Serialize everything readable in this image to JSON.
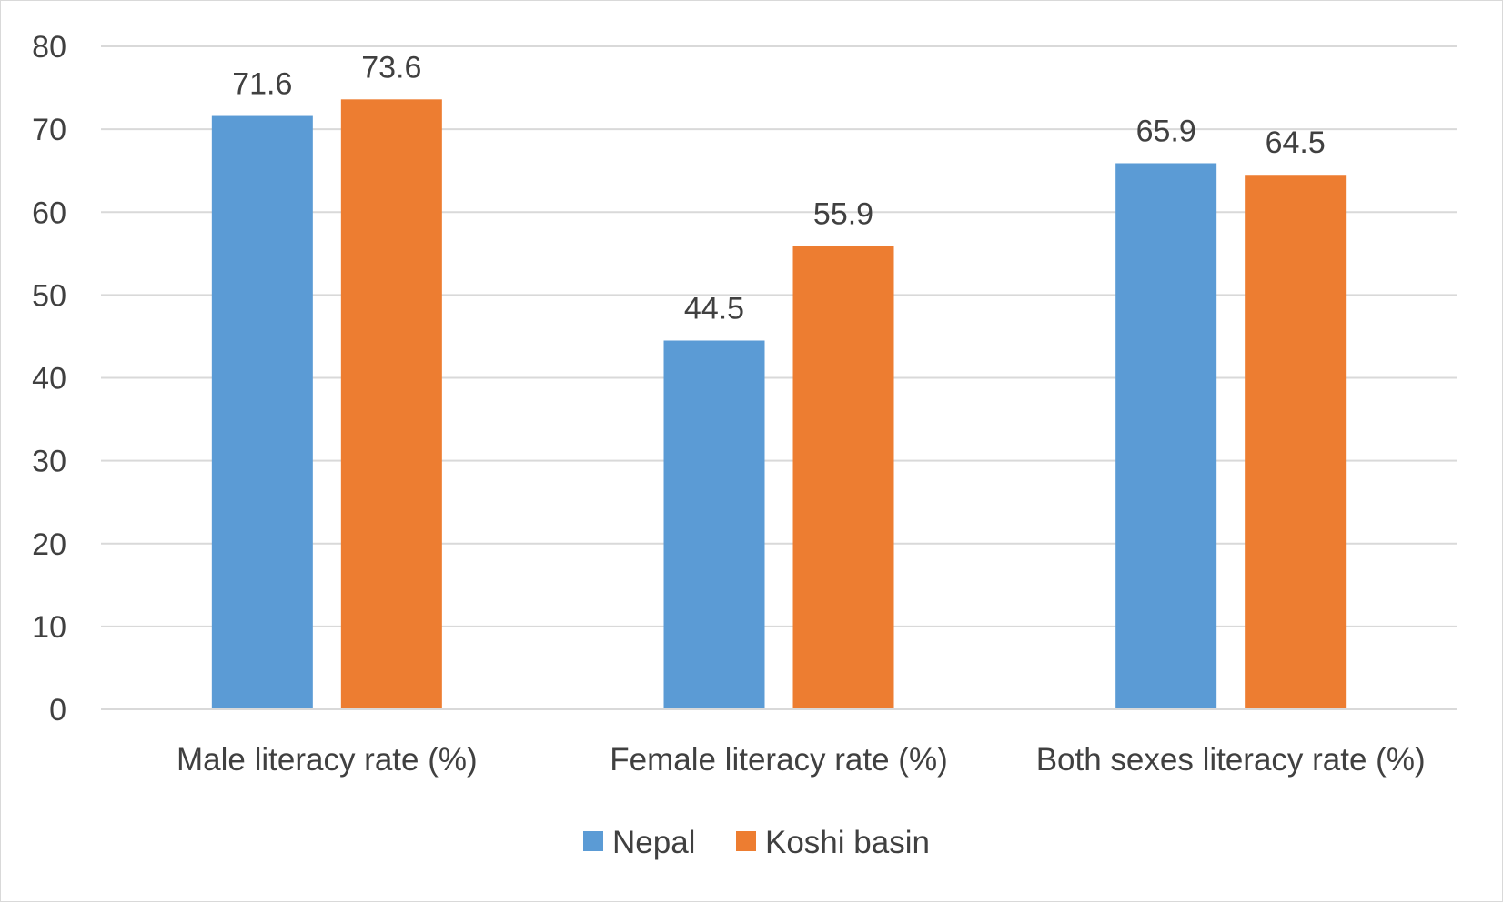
{
  "chart_data": {
    "type": "bar",
    "title": "",
    "xlabel": "",
    "ylabel": "",
    "categories": [
      "Male literacy rate (%)",
      "Female literacy rate (%)",
      "Both sexes literacy rate (%)"
    ],
    "series": [
      {
        "name": "Nepal",
        "values": [
          71.6,
          44.5,
          65.9
        ],
        "color": "#5b9bd5"
      },
      {
        "name": "Koshi basin",
        "values": [
          73.6,
          55.9,
          64.5
        ],
        "color": "#ed7d31"
      }
    ],
    "ylim": [
      0,
      80
    ],
    "yticks": [
      0,
      10,
      20,
      30,
      40,
      50,
      60,
      70,
      80
    ],
    "grid": true,
    "legend_position": "bottom",
    "data_labels": true
  }
}
